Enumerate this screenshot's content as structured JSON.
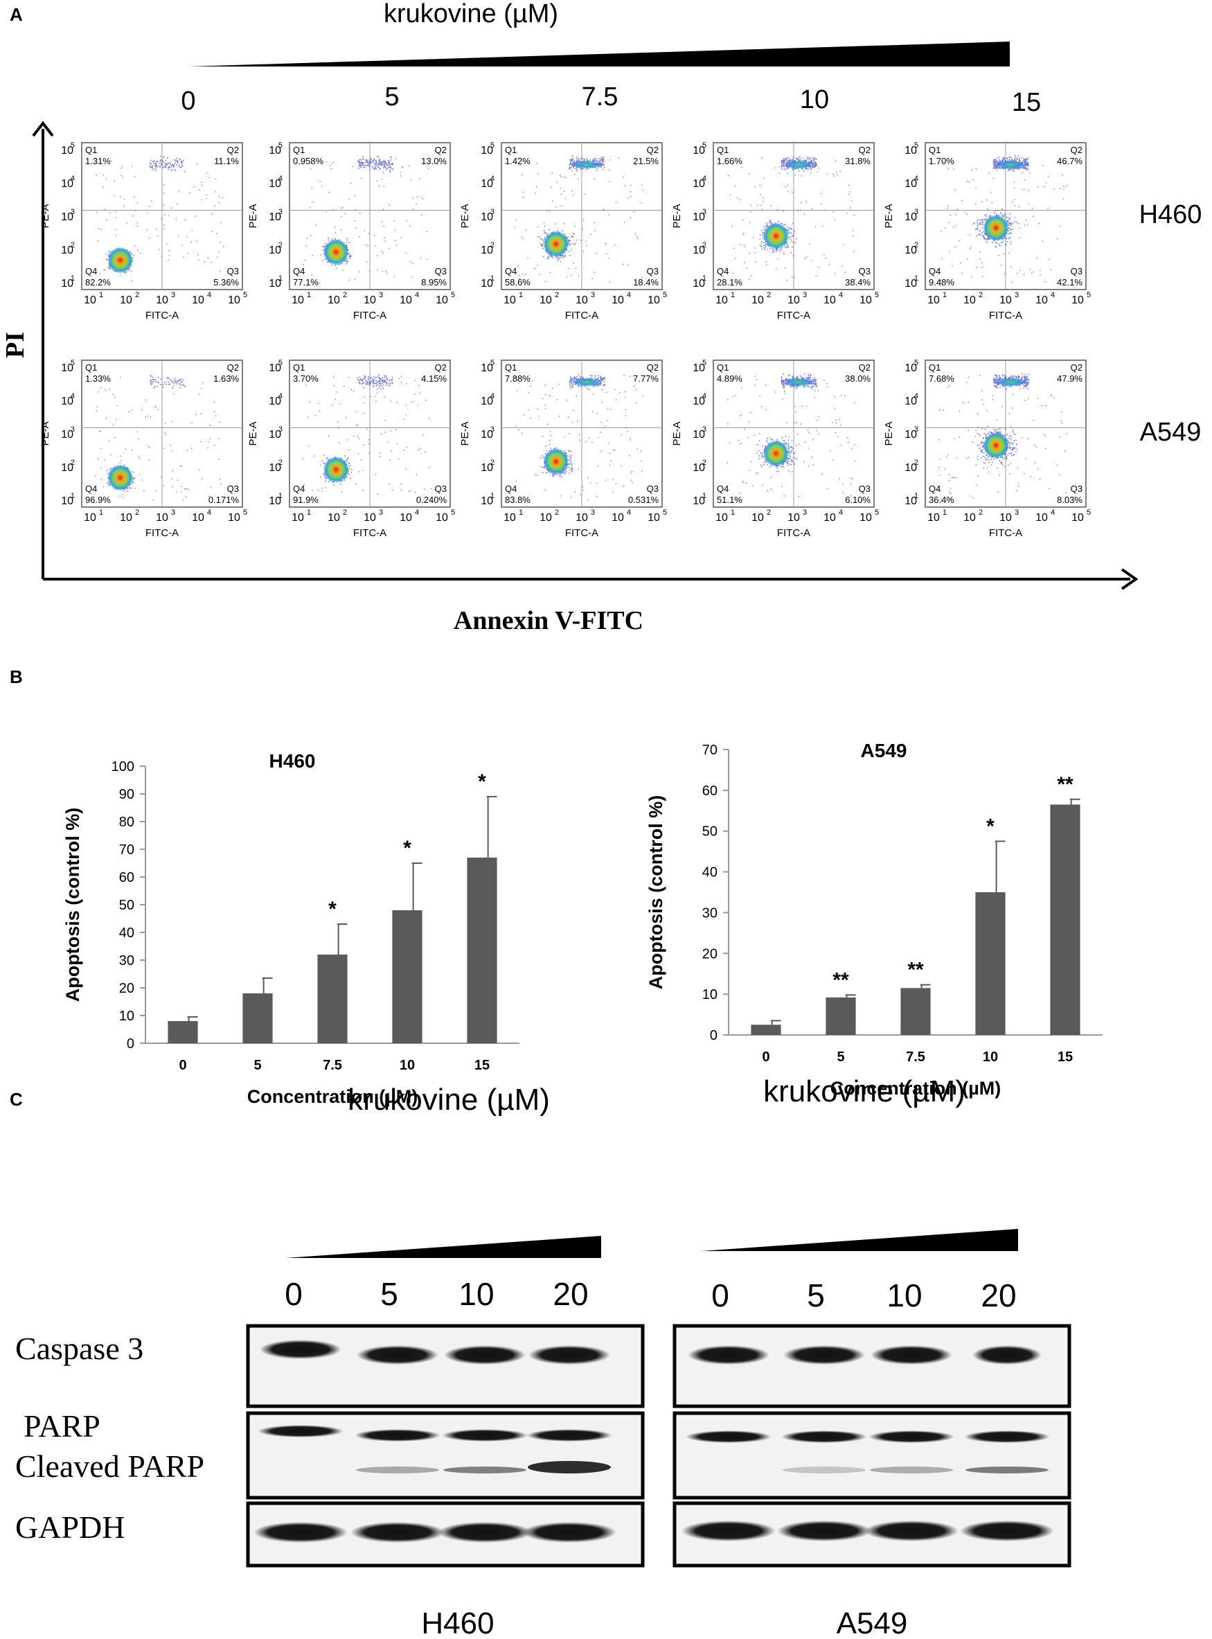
{
  "panel_a": {
    "label": "A",
    "title": "krukovine (µM)",
    "concentrations": [
      "0",
      "5",
      "7.5",
      "10",
      "15"
    ],
    "y_axis_label": "PI",
    "x_axis_label": "Annexin V-FITC",
    "row_labels": [
      "H460",
      "A549"
    ],
    "plot_xlabel": "FITC-A",
    "plot_ylabel": "PE-A",
    "quadrant_names": [
      "Q1",
      "Q2",
      "Q3",
      "Q4"
    ],
    "log_ticks": [
      "10",
      "10",
      "10",
      "10",
      "10"
    ],
    "log_exps": [
      "1",
      "2",
      "3",
      "4",
      "5"
    ],
    "rows": [
      {
        "cell": "H460",
        "plots": [
          {
            "q1": "1.31%",
            "q2": "11.1%",
            "q3": "5.36%",
            "q4": "82.2%"
          },
          {
            "q1": "0.958%",
            "q2": "13.0%",
            "q3": "8.95%",
            "q4": "77.1%"
          },
          {
            "q1": "1.42%",
            "q2": "21.5%",
            "q3": "18.4%",
            "q4": "58.6%"
          },
          {
            "q1": "1.66%",
            "q2": "31.8%",
            "q3": "38.4%",
            "q4": "28.1%"
          },
          {
            "q1": "1.70%",
            "q2": "46.7%",
            "q3": "42.1%",
            "q4": "9.48%"
          }
        ]
      },
      {
        "cell": "A549",
        "plots": [
          {
            "q1": "1.33%",
            "q2": "1.63%",
            "q3": "0.171%",
            "q4": "96.9%"
          },
          {
            "q1": "3.70%",
            "q2": "4.15%",
            "q3": "0.240%",
            "q4": "91.9%"
          },
          {
            "q1": "7.88%",
            "q2": "7.77%",
            "q3": "0.531%",
            "q4": "83.8%"
          },
          {
            "q1": "4.89%",
            "q2": "38.0%",
            "q3": "6.10%",
            "q4": "51.1%"
          },
          {
            "q1": "7.68%",
            "q2": "47.9%",
            "q3": "8.03%",
            "q4": "36.4%"
          }
        ]
      }
    ]
  },
  "panel_b": {
    "label": "B"
  },
  "chart_data": [
    {
      "type": "bar",
      "title": "H460",
      "xlabel": "Concentration (µM)",
      "ylabel": "Apoptosis (control %)",
      "categories": [
        "0",
        "5",
        "7.5",
        "10",
        "15"
      ],
      "values": [
        8,
        18,
        32,
        48,
        67
      ],
      "errors": [
        1.5,
        5.5,
        11,
        17,
        22
      ],
      "significance": [
        "",
        "",
        "*",
        "*",
        "*"
      ],
      "ylim": [
        0,
        100
      ],
      "yticks": [
        "0",
        "10",
        "20",
        "30",
        "40",
        "50",
        "60",
        "70",
        "80",
        "90",
        "100"
      ],
      "bar_color": "#5a5a5a"
    },
    {
      "type": "bar",
      "title": "A549",
      "xlabel": "Concentration (µM)",
      "ylabel": "Apoptosis (control %)",
      "categories": [
        "0",
        "5",
        "7.5",
        "10",
        "15"
      ],
      "values": [
        2.5,
        9.2,
        11.5,
        35,
        56.5
      ],
      "errors": [
        1.0,
        0.6,
        0.8,
        12.5,
        1.3
      ],
      "significance": [
        "",
        "**",
        "**",
        "*",
        "**"
      ],
      "ylim": [
        0,
        70
      ],
      "yticks": [
        "0",
        "10",
        "20",
        "30",
        "40",
        "50",
        "60",
        "70"
      ],
      "bar_color": "#5a5a5a"
    }
  ],
  "panel_c": {
    "label": "C",
    "blots": [
      {
        "cell": "H460",
        "title": "krukovine (µM)",
        "lanes": [
          "0",
          "5",
          "10",
          "20"
        ]
      },
      {
        "cell": "A549",
        "title": "krukovine (µM)",
        "lanes": [
          "0",
          "5",
          "10",
          "20"
        ]
      }
    ],
    "row_labels": [
      "Caspase 3",
      "PARP",
      "Cleaved PARP",
      "GAPDH"
    ]
  }
}
